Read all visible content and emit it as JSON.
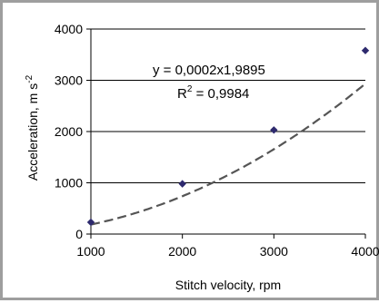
{
  "chart_data": {
    "type": "scatter",
    "xlabel": "Stitch velocity, rpm",
    "ylabel_main": "Acceleration, m s",
    "ylabel_sup": "-2",
    "xlim": [
      1000,
      4000
    ],
    "ylim": [
      0,
      4000
    ],
    "x_ticks": [
      "1000",
      "2000",
      "3000",
      "4000"
    ],
    "y_ticks": [
      "0",
      "1000",
      "2000",
      "3000",
      "4000"
    ],
    "grid": "horizontal",
    "series": [
      {
        "x": [
          1000,
          2000,
          3000,
          4000
        ],
        "y": [
          230,
          980,
          2030,
          3580
        ]
      }
    ],
    "trendline": {
      "style": "dashed",
      "coefficient": 0.0002,
      "exponent": 1.9895,
      "equation": "y = 0,0002x1,9895",
      "r2_prefix": "R",
      "r2_sup": "2",
      "r2_value": " = 0,9984"
    },
    "colors": {
      "marker": "#2e2a6e",
      "trendline": "#555555",
      "grid": "#000000",
      "frame": "#9e9e9e"
    }
  }
}
